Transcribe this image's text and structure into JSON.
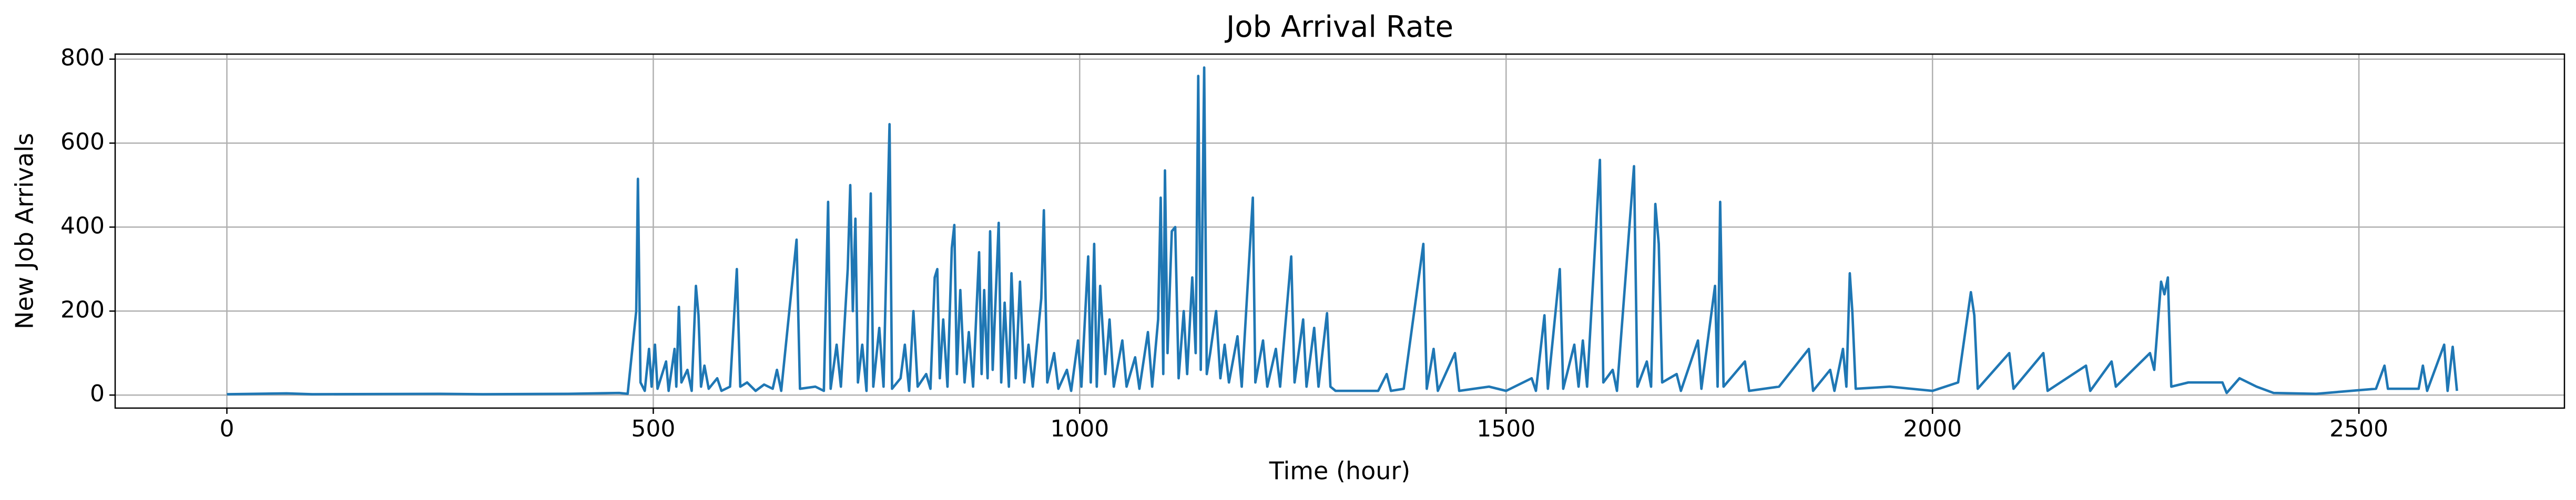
{
  "chart_data": {
    "type": "line",
    "title": "Job Arrival Rate",
    "xlabel": "Time (hour)",
    "ylabel": "New Job Arrivals",
    "color": "#1f77b4",
    "grid": true,
    "xlim": [
      -131,
      2741
    ],
    "ylim": [
      -31,
      812
    ],
    "xticks": [
      0,
      500,
      1000,
      1500,
      2000,
      2500
    ],
    "yticks": [
      0,
      200,
      400,
      600,
      800
    ],
    "x": [
      0,
      70,
      100,
      250,
      300,
      400,
      460,
      470,
      480,
      482,
      485,
      490,
      495,
      498,
      502,
      505,
      515,
      518,
      525,
      527,
      530,
      533,
      540,
      545,
      550,
      553,
      556,
      560,
      565,
      575,
      580,
      590,
      598,
      602,
      610,
      620,
      630,
      640,
      645,
      650,
      668,
      672,
      690,
      700,
      705,
      708,
      715,
      720,
      728,
      731,
      734,
      737,
      740,
      745,
      750,
      755,
      758,
      765,
      770,
      777,
      780,
      790,
      795,
      800,
      805,
      810,
      820,
      825,
      830,
      833,
      836,
      840,
      845,
      850,
      853,
      856,
      860,
      865,
      870,
      875,
      882,
      885,
      888,
      892,
      895,
      898,
      905,
      908,
      912,
      917,
      920,
      925,
      930,
      935,
      940,
      945,
      955,
      958,
      962,
      970,
      975,
      985,
      990,
      998,
      1002,
      1010,
      1013,
      1017,
      1020,
      1024,
      1030,
      1035,
      1040,
      1050,
      1055,
      1065,
      1070,
      1080,
      1085,
      1092,
      1095,
      1098,
      1100,
      1103,
      1108,
      1112,
      1116,
      1122,
      1126,
      1132,
      1136,
      1139,
      1142,
      1146,
      1149,
      1153,
      1160,
      1165,
      1170,
      1175,
      1185,
      1190,
      1203,
      1206,
      1215,
      1220,
      1230,
      1235,
      1248,
      1252,
      1262,
      1266,
      1275,
      1280,
      1290,
      1294,
      1300,
      1350,
      1360,
      1365,
      1380,
      1403,
      1407,
      1415,
      1420,
      1440,
      1445,
      1480,
      1500,
      1530,
      1535,
      1545,
      1549,
      1563,
      1567,
      1580,
      1585,
      1590,
      1595,
      1610,
      1614,
      1625,
      1630,
      1650,
      1654,
      1665,
      1670,
      1675,
      1679,
      1683,
      1700,
      1705,
      1725,
      1729,
      1745,
      1748,
      1751,
      1755,
      1780,
      1785,
      1820,
      1855,
      1860,
      1880,
      1885,
      1895,
      1899,
      1903,
      1906,
      1910,
      1950,
      2000,
      2030,
      2045,
      2049,
      2053,
      2090,
      2095,
      2130,
      2135,
      2180,
      2185,
      2210,
      2215,
      2255,
      2260,
      2268,
      2272,
      2276,
      2280,
      2300,
      2340,
      2345,
      2360,
      2380,
      2400,
      2450,
      2520,
      2530,
      2534,
      2570,
      2575,
      2580,
      2600,
      2604,
      2610,
      2615
    ],
    "values": [
      2,
      4,
      2,
      3,
      2,
      3,
      5,
      3,
      200,
      515,
      30,
      10,
      110,
      20,
      120,
      15,
      80,
      10,
      110,
      20,
      210,
      30,
      60,
      10,
      260,
      190,
      20,
      70,
      15,
      40,
      10,
      20,
      300,
      20,
      30,
      10,
      25,
      15,
      60,
      10,
      370,
      15,
      20,
      10,
      460,
      15,
      120,
      20,
      300,
      500,
      200,
      420,
      30,
      120,
      10,
      480,
      20,
      160,
      20,
      645,
      15,
      40,
      120,
      10,
      200,
      20,
      50,
      15,
      280,
      300,
      40,
      180,
      20,
      350,
      405,
      50,
      250,
      30,
      150,
      20,
      340,
      50,
      250,
      40,
      390,
      60,
      410,
      30,
      220,
      20,
      290,
      40,
      270,
      30,
      120,
      20,
      230,
      440,
      30,
      100,
      15,
      60,
      10,
      130,
      20,
      330,
      30,
      360,
      20,
      260,
      50,
      180,
      20,
      130,
      20,
      90,
      15,
      150,
      20,
      180,
      470,
      50,
      535,
      100,
      390,
      400,
      40,
      200,
      50,
      280,
      100,
      760,
      60,
      780,
      50,
      100,
      200,
      40,
      120,
      30,
      140,
      20,
      470,
      30,
      130,
      20,
      110,
      20,
      330,
      30,
      180,
      20,
      160,
      20,
      195,
      20,
      10,
      10,
      50,
      10,
      15,
      360,
      15,
      110,
      10,
      100,
      10,
      20,
      10,
      40,
      10,
      190,
      15,
      300,
      15,
      120,
      20,
      130,
      20,
      560,
      30,
      60,
      10,
      545,
      20,
      80,
      20,
      455,
      360,
      30,
      50,
      10,
      130,
      15,
      260,
      20,
      460,
      20,
      80,
      10,
      20,
      110,
      10,
      60,
      10,
      110,
      20,
      290,
      200,
      15,
      20,
      10,
      30,
      245,
      190,
      15,
      100,
      15,
      100,
      10,
      70,
      10,
      80,
      20,
      100,
      60,
      270,
      240,
      280,
      20,
      30,
      30,
      5,
      40,
      20,
      5,
      3,
      15,
      70,
      15,
      15,
      70,
      10,
      120,
      10,
      115,
      10
    ]
  }
}
